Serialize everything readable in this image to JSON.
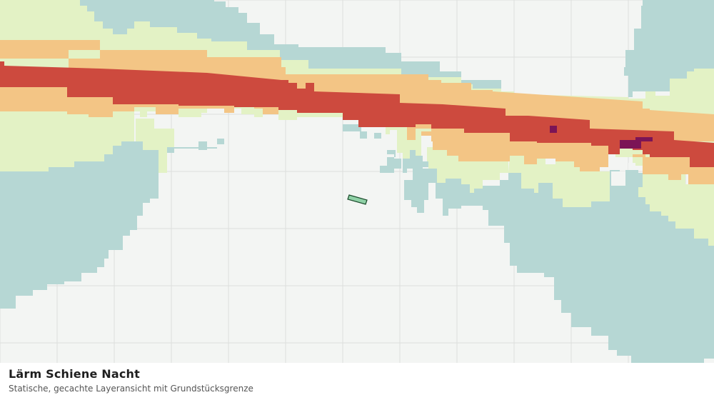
{
  "map": {
    "layer_title": "Lärm Schiene Nacht",
    "layer_subtitle": "Statische, gecachte Layeransicht mit Grundstücksgrenze",
    "colors": {
      "background": "#f3f5f3",
      "grid": "#dddfdd",
      "noise_zone_1_teal": "#b6d7d4",
      "noise_zone_2_lightgreen": "#e3f2c5",
      "noise_zone_3_orange": "#f3c585",
      "noise_zone_4_red": "#cd4a3e",
      "noise_zone_5_purple": "#7b1456",
      "parcel_fill": "#8fd1a6",
      "parcel_outline": "#1a4a2a"
    }
  }
}
